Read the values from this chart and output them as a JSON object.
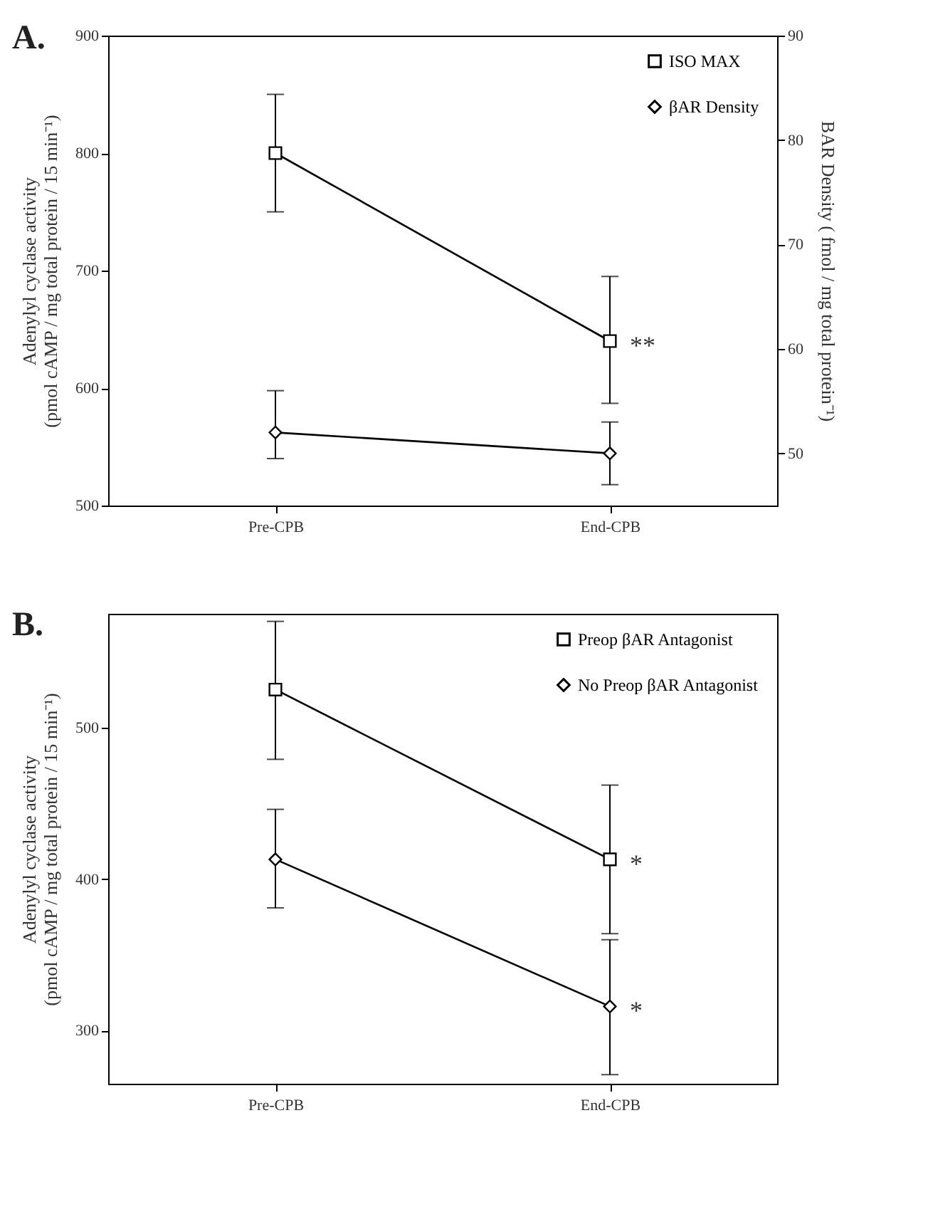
{
  "chart_data": [
    {
      "type": "line",
      "title": "A.",
      "categories": [
        "Pre-CPB",
        "End-CPB"
      ],
      "ylabel": "Adenylyl cyclase activity\n(pmol cAMP / mg total protein / 15 min⁻¹)",
      "y2label": "BAR Density ( fmol / mg total protein⁻¹)",
      "ylim": [
        500,
        900
      ],
      "yticks": [
        500,
        600,
        700,
        800,
        900
      ],
      "y2lim": [
        45,
        90
      ],
      "y2ticks": [
        50,
        60,
        70,
        80,
        90
      ],
      "legend": "top right",
      "grid": false,
      "series": [
        {
          "name": "ISO MAX",
          "color": "#000000",
          "marker": "square",
          "values": [
            800,
            640
          ],
          "errors": [
            [
              750,
              850
            ],
            [
              587,
              695
            ]
          ]
        },
        {
          "name": "βAR Density",
          "color": "#000000",
          "marker": "diamond",
          "axis": "y2",
          "values": [
            52,
            50
          ],
          "errors": [
            [
              49.5,
              56
            ],
            [
              47,
              53
            ]
          ]
        }
      ],
      "annotations": [
        {
          "text": "**",
          "x": "End-CPB",
          "y": 640
        }
      ]
    },
    {
      "type": "line",
      "title": "B.",
      "categories": [
        "Pre-CPB",
        "End-CPB"
      ],
      "ylabel": "Adenylyl cyclase activity\n(pmol cAMP / mg total protein / 15 min⁻¹)",
      "ylim": [
        265,
        575
      ],
      "yticks": [
        300,
        400,
        500
      ],
      "legend": "top right",
      "grid": false,
      "series": [
        {
          "name": "Preop βAR Antagonist",
          "color": "#000000",
          "marker": "square",
          "values": [
            525,
            413
          ],
          "errors": [
            [
              479,
              570
            ],
            [
              364,
              462
            ]
          ]
        },
        {
          "name": "No Preop βAR Antagonist",
          "color": "#000000",
          "marker": "diamond",
          "values": [
            413,
            316
          ],
          "errors": [
            [
              381,
              446
            ],
            [
              271,
              360
            ]
          ]
        }
      ],
      "annotations": [
        {
          "text": "*",
          "x": "End-CPB",
          "y": 413
        },
        {
          "text": "*",
          "x": "End-CPB",
          "y": 316
        }
      ]
    }
  ]
}
